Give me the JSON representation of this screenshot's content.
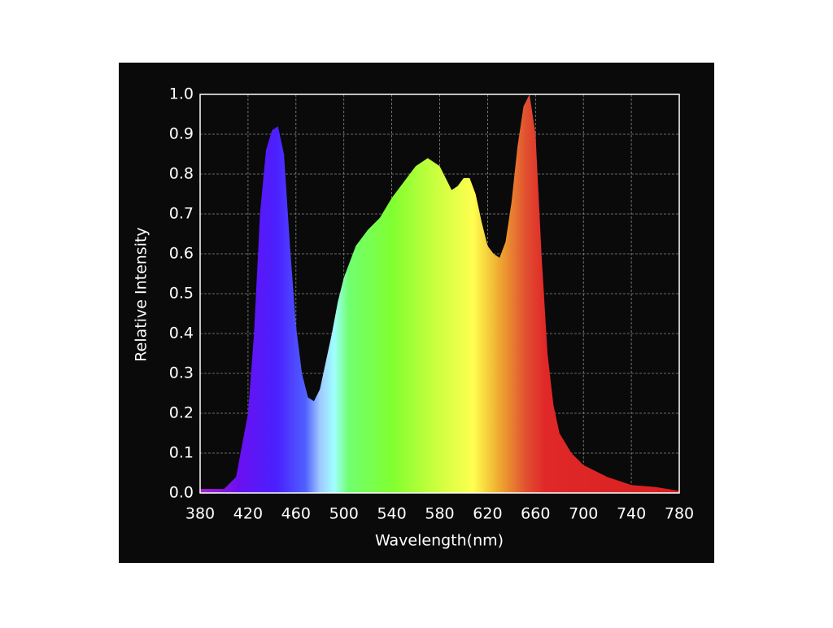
{
  "chart_data": {
    "type": "area",
    "xlabel": "Wavelength(nm)",
    "ylabel": "Relative Intensity",
    "x": [
      380,
      390,
      400,
      410,
      420,
      425,
      430,
      435,
      440,
      445,
      450,
      455,
      460,
      465,
      470,
      475,
      480,
      485,
      490,
      495,
      500,
      510,
      520,
      530,
      540,
      550,
      560,
      570,
      575,
      580,
      585,
      590,
      595,
      600,
      605,
      610,
      615,
      620,
      625,
      630,
      635,
      640,
      645,
      650,
      655,
      660,
      665,
      670,
      675,
      680,
      690,
      700,
      720,
      740,
      760,
      780
    ],
    "values": [
      0.01,
      0.01,
      0.01,
      0.04,
      0.2,
      0.4,
      0.7,
      0.86,
      0.91,
      0.92,
      0.85,
      0.62,
      0.42,
      0.3,
      0.24,
      0.23,
      0.26,
      0.33,
      0.4,
      0.48,
      0.54,
      0.62,
      0.66,
      0.69,
      0.74,
      0.78,
      0.82,
      0.84,
      0.83,
      0.82,
      0.79,
      0.76,
      0.77,
      0.79,
      0.79,
      0.75,
      0.68,
      0.62,
      0.6,
      0.59,
      0.63,
      0.73,
      0.87,
      0.97,
      1.0,
      0.9,
      0.6,
      0.35,
      0.22,
      0.15,
      0.1,
      0.07,
      0.04,
      0.02,
      0.015,
      0.005
    ],
    "xlim": [
      380,
      780
    ],
    "xticks": [
      380,
      420,
      460,
      500,
      540,
      580,
      620,
      660,
      700,
      740,
      780
    ],
    "ylim": [
      0,
      1
    ],
    "yticks": [
      {
        "value": 0,
        "label": "0.0"
      },
      0.1,
      0.2,
      0.3,
      0.4,
      0.5,
      0.6,
      0.7,
      0.8,
      0.9,
      {
        "value": 1,
        "label": "1.0"
      }
    ],
    "grid": true
  }
}
